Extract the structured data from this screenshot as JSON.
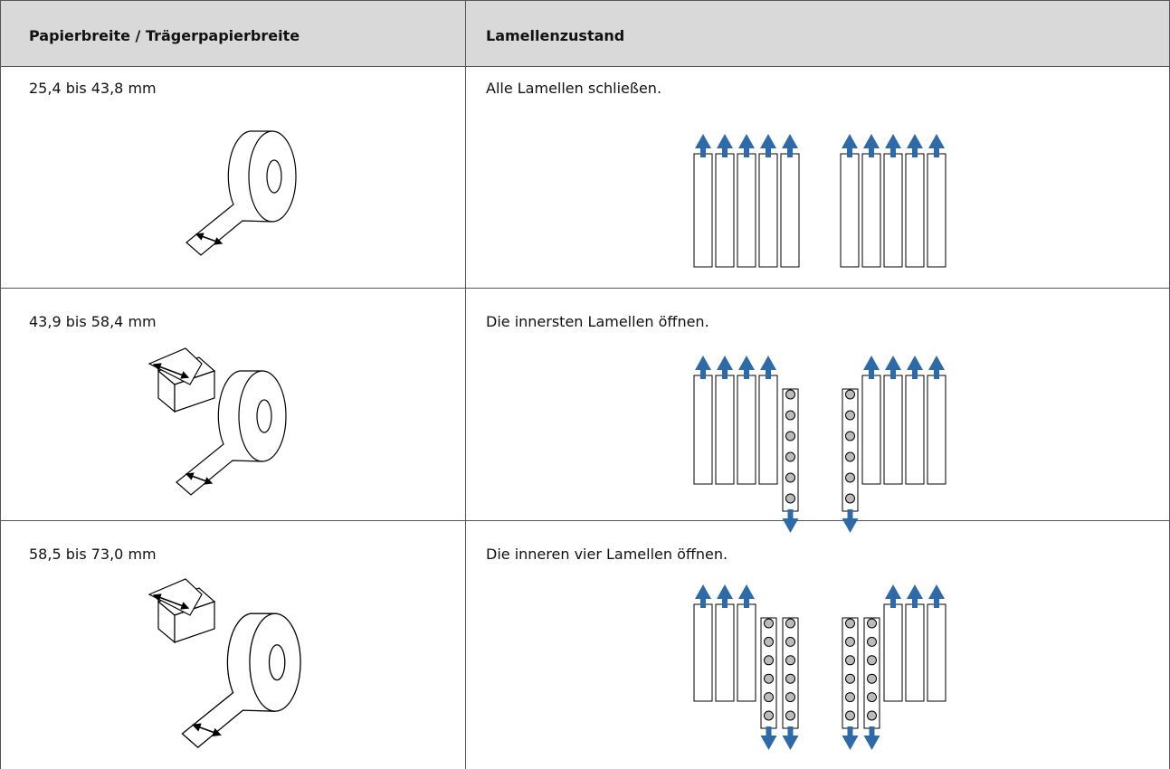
{
  "table": {
    "header": [
      "Papierbreite / Trägerpapierbreite",
      "Lamellenzustand"
    ],
    "rows": [
      [
        "25,4 bis 43,8 mm",
        "Alle Lamellen schließen."
      ],
      [
        "43,9 bis 58,4 mm",
        "Die innersten Lamellen öffnen."
      ],
      [
        "58,5 bis 73,0 mm",
        "Die inneren vier Lamellen öffnen."
      ]
    ]
  }
}
